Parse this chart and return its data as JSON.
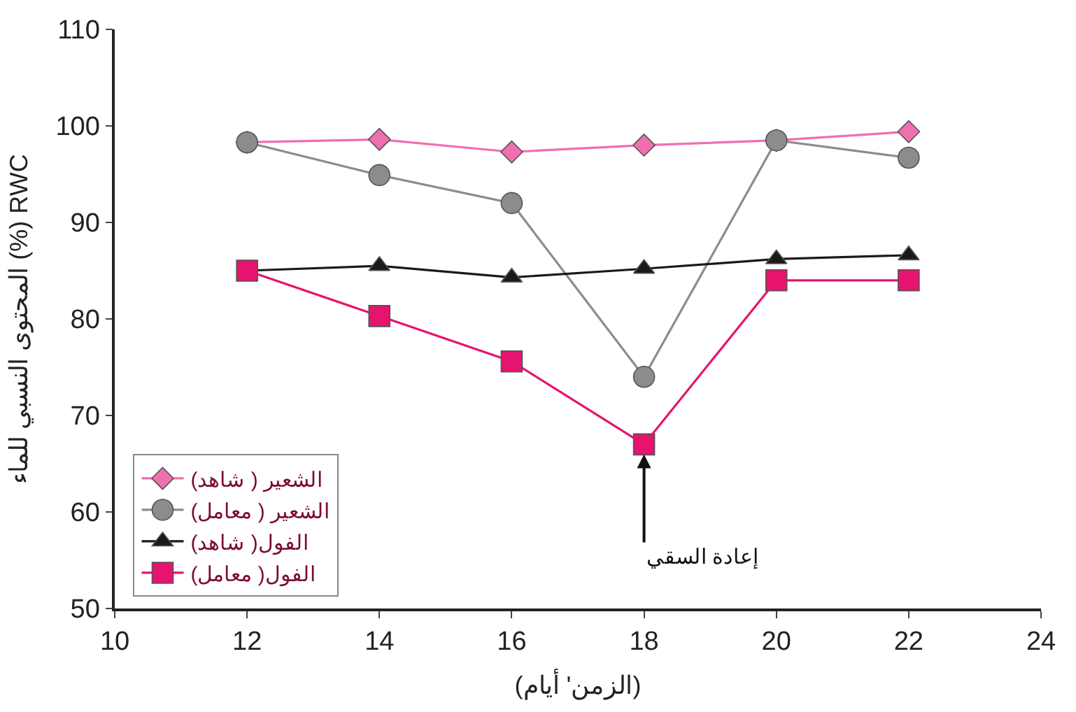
{
  "chart_data": {
    "type": "line",
    "xlabel": "(الزمن' أيام)",
    "ylabel": "المحتوى النسبي للماء (%) RWC",
    "x": [
      12,
      14,
      16,
      18,
      20,
      22
    ],
    "series": [
      {
        "name": "الشعير ( شاهد)",
        "color": "#f06fb0",
        "marker": "diamond",
        "values": [
          98.3,
          98.6,
          97.3,
          98,
          98.5,
          99.4
        ]
      },
      {
        "name": "الشعير ( معامل)",
        "color": "#8c8c8c",
        "marker": "circle",
        "values": [
          98.3,
          94.9,
          92,
          74,
          98.5,
          96.7
        ]
      },
      {
        "name": "الفول( شاهد)",
        "color": "#1a1a1a",
        "marker": "triangle",
        "values": [
          85,
          85.5,
          84.3,
          85.2,
          86.2,
          86.6
        ]
      },
      {
        "name": "الفول( معامل)",
        "color": "#e6136f",
        "marker": "square",
        "values": [
          85,
          80.3,
          75.6,
          67,
          84,
          84
        ]
      }
    ],
    "annotations": [
      {
        "text": "إعادة السقي",
        "x": 18,
        "y": 67
      }
    ],
    "xlim": [
      10,
      24
    ],
    "xticks": [
      10,
      12,
      14,
      16,
      18,
      20,
      22,
      24
    ],
    "ylim": [
      50,
      110
    ],
    "yticks": [
      50,
      60,
      70,
      80,
      90,
      100,
      110
    ],
    "grid": false,
    "legend": "bottom left",
    "line_style": "solid"
  }
}
